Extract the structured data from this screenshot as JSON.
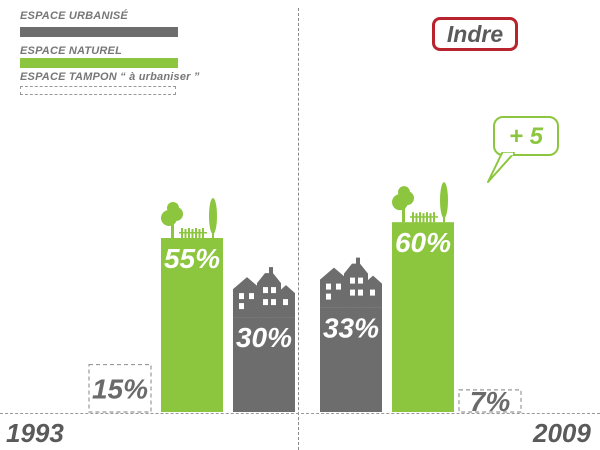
{
  "legend": {
    "items": [
      {
        "label": "ESPACE URBANISÉ",
        "style": "solid",
        "color": "#6d6d6d"
      },
      {
        "label": "ESPACE NATUREL",
        "style": "solid",
        "color": "#8cc63f"
      },
      {
        "label": "ESPACE TAMPON “ à urbaniser ”",
        "style": "dashed",
        "color": "#999999"
      }
    ]
  },
  "region": "Indre",
  "colors": {
    "urbanise": "#6d6d6d",
    "naturel": "#8cc63f",
    "tampon": "#999999",
    "accent": "#b8232e",
    "text": "#5a5a5a"
  },
  "icons": {
    "naturel": "trees-icon",
    "urbanise": "houses-icon"
  },
  "chart_data": {
    "type": "bar",
    "categories": [
      "1993",
      "2009"
    ],
    "series": [
      {
        "name": "ESPACE TAMPON “ à urbaniser ”",
        "values": [
          15,
          7
        ],
        "labels": [
          "15%",
          "7%"
        ]
      },
      {
        "name": "ESPACE NATUREL",
        "values": [
          55,
          60
        ],
        "labels": [
          "55%",
          "60%"
        ]
      },
      {
        "name": "ESPACE URBANISÉ",
        "values": [
          30,
          33
        ],
        "labels": [
          "30%",
          "33%"
        ]
      }
    ],
    "annotation": "+ 5",
    "legend_position": "top-left",
    "grid": false
  }
}
